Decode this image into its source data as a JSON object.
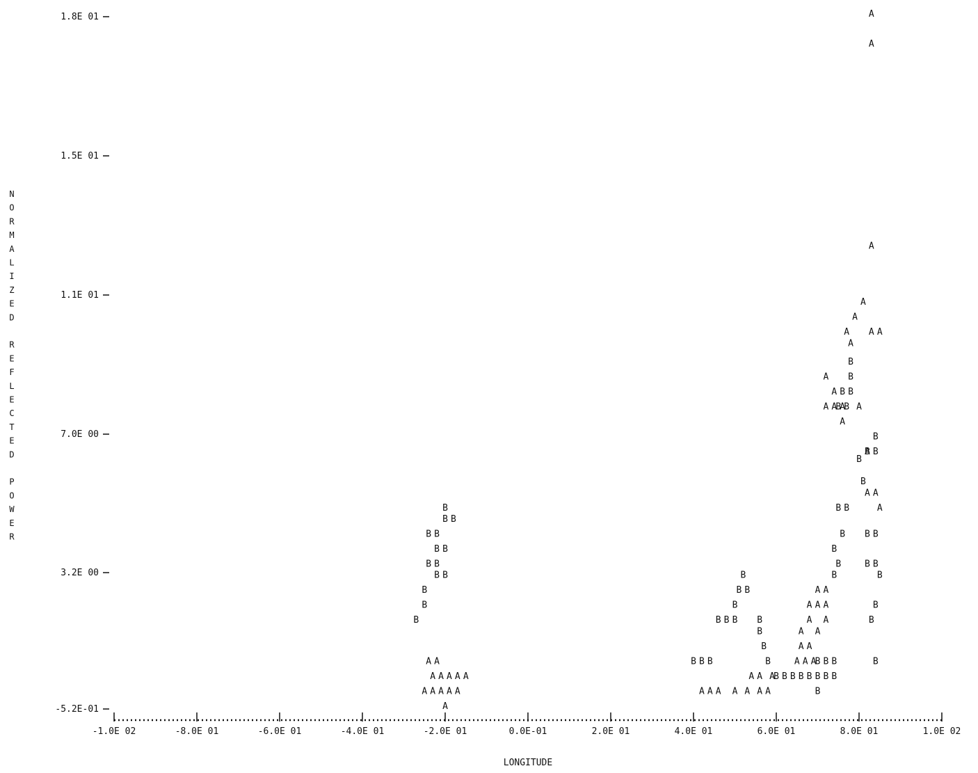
{
  "chart_data": {
    "type": "scatter",
    "xlabel": "LONGITUDE",
    "ylabel": "NORMALIZED REFLECTED POWER",
    "xlim": [
      -100,
      100
    ],
    "ylim": [
      -0.52,
      18
    ],
    "x_tick_labels": [
      "-1.0E 02",
      "-8.0E 01",
      "-6.0E 01",
      "-4.0E 01",
      "-2.0E 01",
      "0.0E-01",
      "2.0E 01",
      "4.0E 01",
      "6.0E 01",
      "8.0E 01",
      "1.0E 02"
    ],
    "y_tick_labels": [
      "1.8E 01",
      "1.5E 01",
      "1.1E 01",
      "7.0E 00",
      "3.2E 00",
      "-5.2E-01"
    ],
    "series": [
      {
        "name": "A",
        "symbol": "A",
        "points": [
          [
            83,
            18.0
          ],
          [
            83,
            17.2
          ],
          [
            83,
            11.8
          ],
          [
            81,
            10.3
          ],
          [
            79,
            9.9
          ],
          [
            77,
            9.5
          ],
          [
            83,
            9.5
          ],
          [
            85,
            9.5
          ],
          [
            78,
            9.2
          ],
          [
            72,
            8.3
          ],
          [
            74,
            7.9
          ],
          [
            72,
            7.5
          ],
          [
            74,
            7.5
          ],
          [
            76,
            7.5
          ],
          [
            80,
            7.5
          ],
          [
            76,
            7.1
          ],
          [
            82,
            6.3
          ],
          [
            82,
            5.2
          ],
          [
            84,
            5.2
          ],
          [
            85,
            4.8
          ],
          [
            70,
            2.6
          ],
          [
            72,
            2.6
          ],
          [
            68,
            2.2
          ],
          [
            70,
            2.2
          ],
          [
            72,
            2.2
          ],
          [
            68,
            1.8
          ],
          [
            72,
            1.8
          ],
          [
            66,
            1.5
          ],
          [
            70,
            1.5
          ],
          [
            66,
            1.1
          ],
          [
            68,
            1.1
          ],
          [
            65,
            0.7
          ],
          [
            67,
            0.7
          ],
          [
            69,
            0.7
          ],
          [
            54,
            0.3
          ],
          [
            56,
            0.3
          ],
          [
            59,
            0.3
          ],
          [
            42,
            -0.1
          ],
          [
            44,
            -0.1
          ],
          [
            46,
            -0.1
          ],
          [
            50,
            -0.1
          ],
          [
            53,
            -0.1
          ],
          [
            56,
            -0.1
          ],
          [
            58,
            -0.1
          ],
          [
            -24,
            0.7
          ],
          [
            -22,
            0.7
          ],
          [
            -23,
            0.3
          ],
          [
            -21,
            0.3
          ],
          [
            -19,
            0.3
          ],
          [
            -17,
            0.3
          ],
          [
            -15,
            0.3
          ],
          [
            -25,
            -0.1
          ],
          [
            -23,
            -0.1
          ],
          [
            -21,
            -0.1
          ],
          [
            -19,
            -0.1
          ],
          [
            -17,
            -0.1
          ],
          [
            -20,
            -0.5
          ]
        ]
      },
      {
        "name": "B",
        "symbol": "B",
        "points": [
          [
            78,
            8.7
          ],
          [
            78,
            8.3
          ],
          [
            76,
            7.9
          ],
          [
            78,
            7.9
          ],
          [
            75,
            7.5
          ],
          [
            77,
            7.5
          ],
          [
            84,
            6.7
          ],
          [
            82,
            6.3
          ],
          [
            84,
            6.3
          ],
          [
            80,
            6.1
          ],
          [
            81,
            5.5
          ],
          [
            75,
            4.8
          ],
          [
            77,
            4.8
          ],
          [
            76,
            4.1
          ],
          [
            82,
            4.1
          ],
          [
            84,
            4.1
          ],
          [
            74,
            3.7
          ],
          [
            75,
            3.3
          ],
          [
            82,
            3.3
          ],
          [
            84,
            3.3
          ],
          [
            74,
            3.0
          ],
          [
            85,
            3.0
          ],
          [
            84,
            2.2
          ],
          [
            83,
            1.8
          ],
          [
            84,
            0.7
          ],
          [
            52,
            3.0
          ],
          [
            51,
            2.6
          ],
          [
            53,
            2.6
          ],
          [
            50,
            2.2
          ],
          [
            46,
            1.8
          ],
          [
            48,
            1.8
          ],
          [
            50,
            1.8
          ],
          [
            56,
            1.8
          ],
          [
            56,
            1.5
          ],
          [
            57,
            1.1
          ],
          [
            58,
            0.7
          ],
          [
            70,
            0.7
          ],
          [
            72,
            0.7
          ],
          [
            74,
            0.7
          ],
          [
            60,
            0.3
          ],
          [
            62,
            0.3
          ],
          [
            64,
            0.3
          ],
          [
            66,
            0.3
          ],
          [
            68,
            0.3
          ],
          [
            70,
            0.3
          ],
          [
            72,
            0.3
          ],
          [
            74,
            0.3
          ],
          [
            70,
            -0.1
          ],
          [
            40,
            0.7
          ],
          [
            42,
            0.7
          ],
          [
            44,
            0.7
          ],
          [
            -20,
            4.8
          ],
          [
            -20,
            4.5
          ],
          [
            -18,
            4.5
          ],
          [
            -24,
            4.1
          ],
          [
            -22,
            4.1
          ],
          [
            -22,
            3.7
          ],
          [
            -20,
            3.7
          ],
          [
            -24,
            3.3
          ],
          [
            -22,
            3.3
          ],
          [
            -22,
            3.0
          ],
          [
            -20,
            3.0
          ],
          [
            -25,
            2.6
          ],
          [
            -25,
            2.2
          ],
          [
            -27,
            1.8
          ]
        ]
      }
    ],
    "grid": false,
    "legend": "none"
  }
}
